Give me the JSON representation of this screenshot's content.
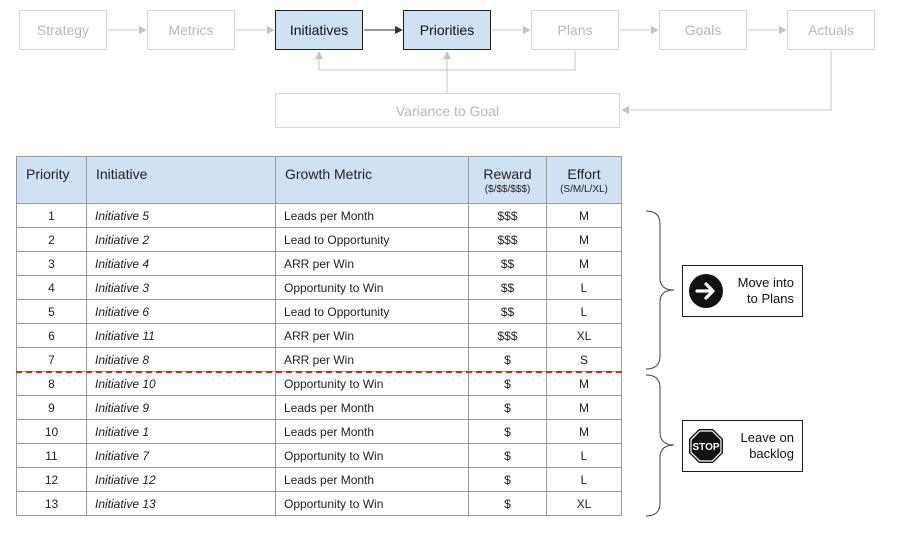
{
  "flow": {
    "steps": [
      {
        "label": "Strategy",
        "active": false
      },
      {
        "label": "Metrics",
        "active": false
      },
      {
        "label": "Initiatives",
        "active": true
      },
      {
        "label": "Priorities",
        "active": true
      },
      {
        "label": "Plans",
        "active": false
      },
      {
        "label": "Goals",
        "active": false
      },
      {
        "label": "Actuals",
        "active": false
      }
    ],
    "variance_label": "Variance to Goal"
  },
  "table": {
    "headers": {
      "priority": "Priority",
      "initiative": "Initiative",
      "growth_metric": "Growth Metric",
      "reward": "Reward",
      "reward_sub": "($/$$/$$$)",
      "effort": "Effort",
      "effort_sub": "(S/M/L/XL)"
    },
    "rows": [
      {
        "priority": "1",
        "initiative": "Initiative 5",
        "metric": "Leads per Month",
        "reward": "$$$",
        "effort": "M"
      },
      {
        "priority": "2",
        "initiative": "Initiative 2",
        "metric": "Lead to Opportunity",
        "reward": "$$$",
        "effort": "M"
      },
      {
        "priority": "3",
        "initiative": "Initiative 4",
        "metric": "ARR per Win",
        "reward": "$$",
        "effort": "M"
      },
      {
        "priority": "4",
        "initiative": "Initiative 3",
        "metric": "Opportunity to Win",
        "reward": "$$",
        "effort": "L"
      },
      {
        "priority": "5",
        "initiative": "Initiative 6",
        "metric": "Lead to Opportunity",
        "reward": "$$",
        "effort": "L"
      },
      {
        "priority": "6",
        "initiative": "Initiative 11",
        "metric": "ARR per Win",
        "reward": "$$$",
        "effort": "XL"
      },
      {
        "priority": "7",
        "initiative": "Initiative 8",
        "metric": "ARR per Win",
        "reward": "$",
        "effort": "S"
      },
      {
        "priority": "8",
        "initiative": "Initiative 10",
        "metric": "Opportunity to Win",
        "reward": "$",
        "effort": "M"
      },
      {
        "priority": "9",
        "initiative": "Initiative 9",
        "metric": "Leads per Month",
        "reward": "$",
        "effort": "M"
      },
      {
        "priority": "10",
        "initiative": "Initiative 1",
        "metric": "Leads per Month",
        "reward": "$",
        "effort": "M"
      },
      {
        "priority": "11",
        "initiative": "Initiative 7",
        "metric": "Opportunity to Win",
        "reward": "$",
        "effort": "L"
      },
      {
        "priority": "12",
        "initiative": "Initiative 12",
        "metric": "Leads per Month",
        "reward": "$",
        "effort": "L"
      },
      {
        "priority": "13",
        "initiative": "Initiative 13",
        "metric": "Opportunity to Win",
        "reward": "$",
        "effort": "XL"
      }
    ]
  },
  "groups": {
    "top": {
      "label": "Move into\nto Plans",
      "icon": "arrow-right-circle-icon"
    },
    "bottom": {
      "label": "Leave on\nbacklog",
      "icon": "stop-sign-icon",
      "sign_text": "STOP"
    }
  },
  "colors": {
    "active_fill": "#cfe2f3",
    "cut_line": "#e8211b",
    "inactive_text": "#b8b8b8"
  }
}
